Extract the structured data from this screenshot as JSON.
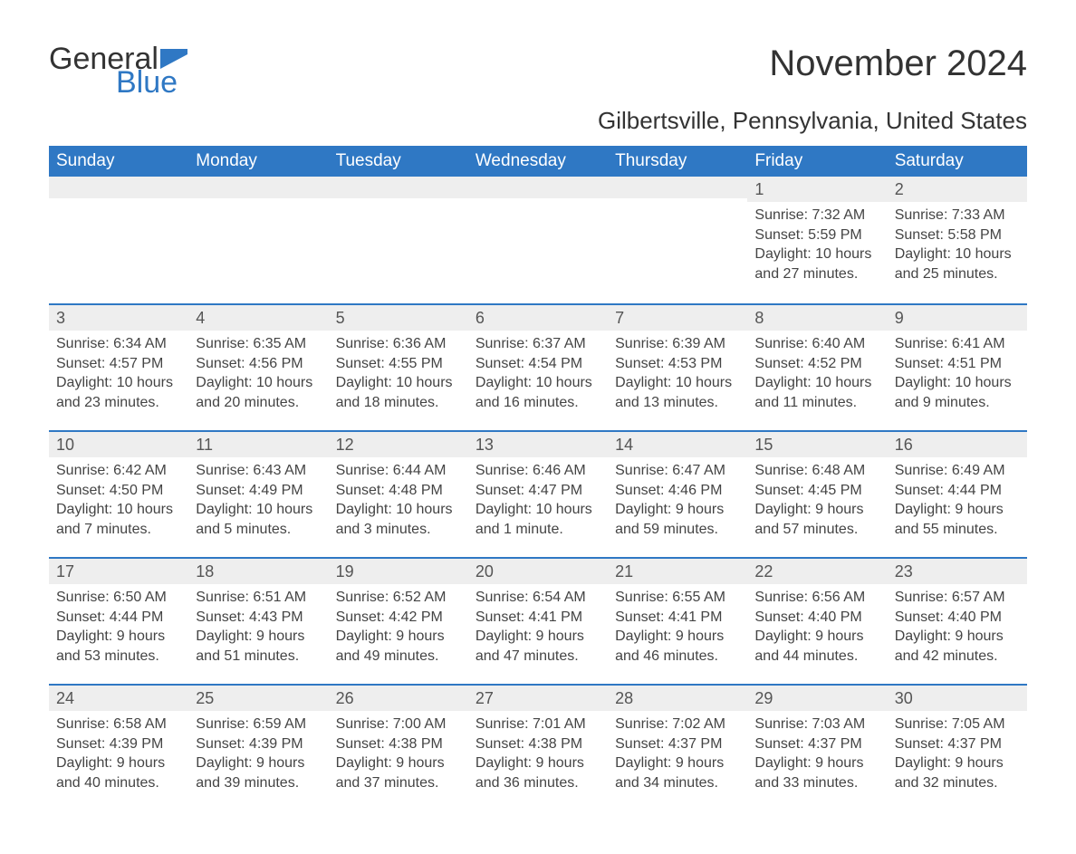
{
  "brand": {
    "word1": "General",
    "word2": "Blue",
    "flag_color": "#2f78c4"
  },
  "title": "November 2024",
  "location": "Gilbertsville, Pennsylvania, United States",
  "colors": {
    "header_bg": "#2f78c4",
    "header_text": "#ffffff",
    "row_divider": "#2f78c4",
    "daynum_bg": "#eeeeee",
    "text": "#444444"
  },
  "day_names": [
    "Sunday",
    "Monday",
    "Tuesday",
    "Wednesday",
    "Thursday",
    "Friday",
    "Saturday"
  ],
  "weeks": [
    [
      {
        "n": "",
        "sunrise": "",
        "sunset": "",
        "day1": "",
        "day2": ""
      },
      {
        "n": "",
        "sunrise": "",
        "sunset": "",
        "day1": "",
        "day2": ""
      },
      {
        "n": "",
        "sunrise": "",
        "sunset": "",
        "day1": "",
        "day2": ""
      },
      {
        "n": "",
        "sunrise": "",
        "sunset": "",
        "day1": "",
        "day2": ""
      },
      {
        "n": "",
        "sunrise": "",
        "sunset": "",
        "day1": "",
        "day2": ""
      },
      {
        "n": "1",
        "sunrise": "Sunrise: 7:32 AM",
        "sunset": "Sunset: 5:59 PM",
        "day1": "Daylight: 10 hours",
        "day2": "and 27 minutes."
      },
      {
        "n": "2",
        "sunrise": "Sunrise: 7:33 AM",
        "sunset": "Sunset: 5:58 PM",
        "day1": "Daylight: 10 hours",
        "day2": "and 25 minutes."
      }
    ],
    [
      {
        "n": "3",
        "sunrise": "Sunrise: 6:34 AM",
        "sunset": "Sunset: 4:57 PM",
        "day1": "Daylight: 10 hours",
        "day2": "and 23 minutes."
      },
      {
        "n": "4",
        "sunrise": "Sunrise: 6:35 AM",
        "sunset": "Sunset: 4:56 PM",
        "day1": "Daylight: 10 hours",
        "day2": "and 20 minutes."
      },
      {
        "n": "5",
        "sunrise": "Sunrise: 6:36 AM",
        "sunset": "Sunset: 4:55 PM",
        "day1": "Daylight: 10 hours",
        "day2": "and 18 minutes."
      },
      {
        "n": "6",
        "sunrise": "Sunrise: 6:37 AM",
        "sunset": "Sunset: 4:54 PM",
        "day1": "Daylight: 10 hours",
        "day2": "and 16 minutes."
      },
      {
        "n": "7",
        "sunrise": "Sunrise: 6:39 AM",
        "sunset": "Sunset: 4:53 PM",
        "day1": "Daylight: 10 hours",
        "day2": "and 13 minutes."
      },
      {
        "n": "8",
        "sunrise": "Sunrise: 6:40 AM",
        "sunset": "Sunset: 4:52 PM",
        "day1": "Daylight: 10 hours",
        "day2": "and 11 minutes."
      },
      {
        "n": "9",
        "sunrise": "Sunrise: 6:41 AM",
        "sunset": "Sunset: 4:51 PM",
        "day1": "Daylight: 10 hours",
        "day2": "and 9 minutes."
      }
    ],
    [
      {
        "n": "10",
        "sunrise": "Sunrise: 6:42 AM",
        "sunset": "Sunset: 4:50 PM",
        "day1": "Daylight: 10 hours",
        "day2": "and 7 minutes."
      },
      {
        "n": "11",
        "sunrise": "Sunrise: 6:43 AM",
        "sunset": "Sunset: 4:49 PM",
        "day1": "Daylight: 10 hours",
        "day2": "and 5 minutes."
      },
      {
        "n": "12",
        "sunrise": "Sunrise: 6:44 AM",
        "sunset": "Sunset: 4:48 PM",
        "day1": "Daylight: 10 hours",
        "day2": "and 3 minutes."
      },
      {
        "n": "13",
        "sunrise": "Sunrise: 6:46 AM",
        "sunset": "Sunset: 4:47 PM",
        "day1": "Daylight: 10 hours",
        "day2": "and 1 minute."
      },
      {
        "n": "14",
        "sunrise": "Sunrise: 6:47 AM",
        "sunset": "Sunset: 4:46 PM",
        "day1": "Daylight: 9 hours",
        "day2": "and 59 minutes."
      },
      {
        "n": "15",
        "sunrise": "Sunrise: 6:48 AM",
        "sunset": "Sunset: 4:45 PM",
        "day1": "Daylight: 9 hours",
        "day2": "and 57 minutes."
      },
      {
        "n": "16",
        "sunrise": "Sunrise: 6:49 AM",
        "sunset": "Sunset: 4:44 PM",
        "day1": "Daylight: 9 hours",
        "day2": "and 55 minutes."
      }
    ],
    [
      {
        "n": "17",
        "sunrise": "Sunrise: 6:50 AM",
        "sunset": "Sunset: 4:44 PM",
        "day1": "Daylight: 9 hours",
        "day2": "and 53 minutes."
      },
      {
        "n": "18",
        "sunrise": "Sunrise: 6:51 AM",
        "sunset": "Sunset: 4:43 PM",
        "day1": "Daylight: 9 hours",
        "day2": "and 51 minutes."
      },
      {
        "n": "19",
        "sunrise": "Sunrise: 6:52 AM",
        "sunset": "Sunset: 4:42 PM",
        "day1": "Daylight: 9 hours",
        "day2": "and 49 minutes."
      },
      {
        "n": "20",
        "sunrise": "Sunrise: 6:54 AM",
        "sunset": "Sunset: 4:41 PM",
        "day1": "Daylight: 9 hours",
        "day2": "and 47 minutes."
      },
      {
        "n": "21",
        "sunrise": "Sunrise: 6:55 AM",
        "sunset": "Sunset: 4:41 PM",
        "day1": "Daylight: 9 hours",
        "day2": "and 46 minutes."
      },
      {
        "n": "22",
        "sunrise": "Sunrise: 6:56 AM",
        "sunset": "Sunset: 4:40 PM",
        "day1": "Daylight: 9 hours",
        "day2": "and 44 minutes."
      },
      {
        "n": "23",
        "sunrise": "Sunrise: 6:57 AM",
        "sunset": "Sunset: 4:40 PM",
        "day1": "Daylight: 9 hours",
        "day2": "and 42 minutes."
      }
    ],
    [
      {
        "n": "24",
        "sunrise": "Sunrise: 6:58 AM",
        "sunset": "Sunset: 4:39 PM",
        "day1": "Daylight: 9 hours",
        "day2": "and 40 minutes."
      },
      {
        "n": "25",
        "sunrise": "Sunrise: 6:59 AM",
        "sunset": "Sunset: 4:39 PM",
        "day1": "Daylight: 9 hours",
        "day2": "and 39 minutes."
      },
      {
        "n": "26",
        "sunrise": "Sunrise: 7:00 AM",
        "sunset": "Sunset: 4:38 PM",
        "day1": "Daylight: 9 hours",
        "day2": "and 37 minutes."
      },
      {
        "n": "27",
        "sunrise": "Sunrise: 7:01 AM",
        "sunset": "Sunset: 4:38 PM",
        "day1": "Daylight: 9 hours",
        "day2": "and 36 minutes."
      },
      {
        "n": "28",
        "sunrise": "Sunrise: 7:02 AM",
        "sunset": "Sunset: 4:37 PM",
        "day1": "Daylight: 9 hours",
        "day2": "and 34 minutes."
      },
      {
        "n": "29",
        "sunrise": "Sunrise: 7:03 AM",
        "sunset": "Sunset: 4:37 PM",
        "day1": "Daylight: 9 hours",
        "day2": "and 33 minutes."
      },
      {
        "n": "30",
        "sunrise": "Sunrise: 7:05 AM",
        "sunset": "Sunset: 4:37 PM",
        "day1": "Daylight: 9 hours",
        "day2": "and 32 minutes."
      }
    ]
  ]
}
